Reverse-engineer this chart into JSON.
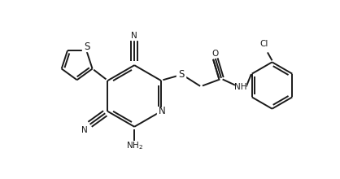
{
  "bg_color": "#ffffff",
  "line_color": "#1a1a1a",
  "line_width": 1.4,
  "font_size": 7.5,
  "fig_width": 4.18,
  "fig_height": 2.2,
  "dpi": 100,
  "xlim": [
    0,
    10.5
  ],
  "ylim": [
    0,
    5.5
  ]
}
